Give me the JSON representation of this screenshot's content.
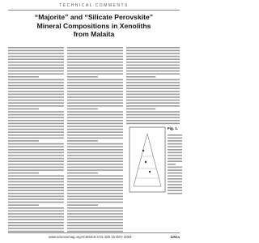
{
  "header": {
    "section": "TECHNICAL COMMENTS"
  },
  "article": {
    "title": "“Majorite” and “Silicate Perovskite” Mineral Compositions in Xenoliths from Malaita"
  },
  "figure": {
    "label": "Fig. 1."
  },
  "footer": {
    "site": "www.sciencemag.org",
    "journal": "SCIENCE VOL 300 16 MAY 2003",
    "page": "1251a"
  }
}
